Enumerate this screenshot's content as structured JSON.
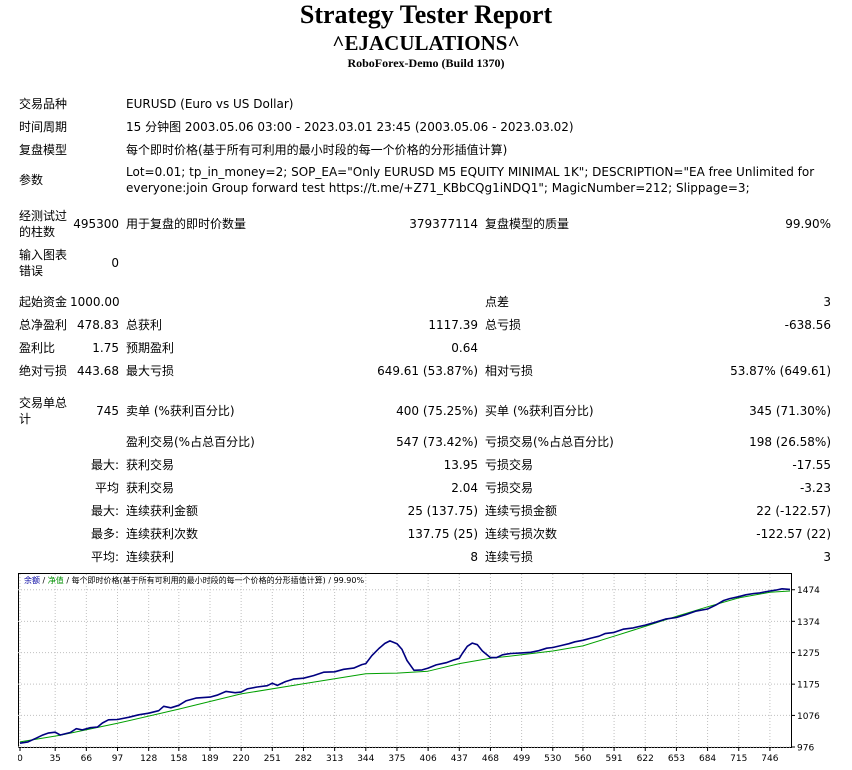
{
  "header": {
    "title": "Strategy Tester Report",
    "ea_name": "^EJACULATIONS^",
    "server": "RoboForex-Demo (Build 1370)"
  },
  "info": {
    "symbol_label": "交易品种",
    "symbol_value": "EURUSD (Euro vs US Dollar)",
    "period_label": "时间周期",
    "period_value": "15 分钟图 2003.05.06 03:00 - 2023.03.01 23:45 (2003.05.06 - 2023.03.02)",
    "model_label": "复盘模型",
    "model_value": "每个即时价格(基于所有可利用的最小时段的每一个价格的分形插值计算)",
    "params_label": "参数",
    "params_value": "Lot=0.01; tp_in_money=2; SOP_EA=\"Only EURUSD M5 EQUITY MINIMAL 1K\"; DESCRIPTION=\"EA free Unlimited for everyone:join Group forward test https://t.me/+Z71_KBbCQg1iNDQ1\"; MagicNumber=212; Slippage=3;"
  },
  "bars": {
    "bars_label": "经测试过的柱数",
    "bars_value": "495300",
    "ticks_label": "用于复盘的即时价数量",
    "ticks_value": "379377114",
    "quality_label": "复盘模型的质量",
    "quality_value": "99.90%",
    "errors_label": "输入图表错误",
    "errors_value": "0"
  },
  "stats": {
    "deposit_label": "起始资金",
    "deposit_value": "1000.00",
    "spread_label": "点差",
    "spread_value": "3",
    "net_label": "总净盈利",
    "net_value": "478.83",
    "gross_profit_label": "总获利",
    "gross_profit_value": "1117.39",
    "gross_loss_label": "总亏损",
    "gross_loss_value": "-638.56",
    "pf_label": "盈利比",
    "pf_value": "1.75",
    "ep_label": "预期盈利",
    "ep_value": "0.64",
    "abs_dd_label": "绝对亏损",
    "abs_dd_value": "443.68",
    "max_dd_label": "最大亏损",
    "max_dd_value": "649.61 (53.87%)",
    "rel_dd_label": "相对亏损",
    "rel_dd_value": "53.87% (649.61)"
  },
  "trades": {
    "total_label": "交易单总计",
    "total_value": "745",
    "short_label": "卖单 (%获利百分比)",
    "short_value": "400 (75.25%)",
    "long_label": "买单 (%获利百分比)",
    "long_value": "345 (71.30%)",
    "profit_trades_label": "盈利交易(%占总百分比)",
    "profit_trades_value": "547 (73.42%)",
    "loss_trades_label": "亏损交易(%占总百分比)",
    "loss_trades_value": "198 (26.58%)",
    "largest_prefix": "最大:",
    "largest_profit_label": "获利交易",
    "largest_profit_value": "13.95",
    "largest_loss_label": "亏损交易",
    "largest_loss_value": "-17.55",
    "average_prefix": "平均",
    "average_profit_label": "获利交易",
    "average_profit_value": "2.04",
    "average_loss_label": "亏损交易",
    "average_loss_value": "-3.23",
    "max_prefix": "最大:",
    "max_cons_wins_label": "连续获利金额",
    "max_cons_wins_value": "25 (137.75)",
    "max_cons_losses_label": "连续亏损金额",
    "max_cons_losses_value": "22 (-122.57)",
    "maximal_prefix": "最多:",
    "maximal_cons_profit_label": "连续获利次数",
    "maximal_cons_profit_value": "137.75 (25)",
    "maximal_cons_loss_label": "连续亏损次数",
    "maximal_cons_loss_value": "-122.57 (22)",
    "avg_cons_prefix": "平均:",
    "avg_cons_wins_label": "连续获利",
    "avg_cons_wins_value": "8",
    "avg_cons_losses_label": "连续亏损",
    "avg_cons_losses_value": "3"
  },
  "chart_legend": {
    "balance": "余额",
    "sep1": " / ",
    "equity": "净值",
    "rest": " / 每个即时价格(基于所有可利用的最小时段的每一个价格的分形插值计算) / 99.90%"
  },
  "chart_data": {
    "type": "line",
    "x_ticks": [
      "0",
      "35",
      "66",
      "97",
      "128",
      "158",
      "189",
      "220",
      "251",
      "282",
      "313",
      "344",
      "375",
      "406",
      "437",
      "468",
      "499",
      "530",
      "560",
      "591",
      "622",
      "653",
      "684",
      "715",
      "746"
    ],
    "y_ticks": [
      "976",
      "1076",
      "1175",
      "1275",
      "1374",
      "1474"
    ],
    "xlim": [
      0,
      766
    ],
    "ylim": [
      976,
      1508
    ],
    "series": [
      {
        "name": "余额",
        "color": "#000080",
        "x": [
          0,
          8,
          16,
          22,
          28,
          35,
          40,
          50,
          56,
          62,
          70,
          77,
          82,
          88,
          97,
          108,
          118,
          128,
          138,
          143,
          150,
          158,
          165,
          175,
          189,
          196,
          205,
          214,
          220,
          226,
          236,
          246,
          251,
          256,
          264,
          272,
          282,
          292,
          302,
          313,
          322,
          332,
          340,
          344,
          350,
          357,
          363,
          368,
          375,
          380,
          385,
          392,
          400,
          406,
          414,
          424,
          432,
          437,
          440,
          445,
          450,
          455,
          460,
          468,
          474,
          480,
          488,
          499,
          508,
          516,
          524,
          530,
          538,
          546,
          552,
          560,
          568,
          576,
          582,
          591,
          600,
          610,
          622,
          632,
          642,
          653,
          662,
          672,
          684,
          692,
          700,
          706,
          715,
          722,
          730,
          736,
          746,
          752,
          758,
          766
        ],
        "y": [
          988,
          992,
          1004,
          1013,
          1020,
          1023,
          1014,
          1022,
          1034,
          1030,
          1037,
          1039,
          1052,
          1062,
          1063,
          1070,
          1078,
          1083,
          1091,
          1105,
          1100,
          1108,
          1122,
          1131,
          1134,
          1140,
          1152,
          1148,
          1150,
          1160,
          1166,
          1170,
          1178,
          1171,
          1183,
          1191,
          1194,
          1202,
          1213,
          1214,
          1222,
          1226,
          1237,
          1240,
          1265,
          1288,
          1304,
          1312,
          1303,
          1285,
          1250,
          1219,
          1220,
          1226,
          1236,
          1243,
          1252,
          1257,
          1272,
          1295,
          1305,
          1300,
          1280,
          1259,
          1259,
          1268,
          1272,
          1274,
          1276,
          1281,
          1289,
          1291,
          1297,
          1303,
          1309,
          1314,
          1321,
          1327,
          1335,
          1339,
          1349,
          1353,
          1362,
          1371,
          1381,
          1386,
          1395,
          1406,
          1413,
          1425,
          1440,
          1446,
          1452,
          1458,
          1462,
          1464,
          1470,
          1473,
          1477,
          1475
        ]
      },
      {
        "name": "净值",
        "color": "#00a000",
        "x": [
          0,
          40,
          97,
          158,
          220,
          282,
          344,
          375,
          406,
          437,
          468,
          499,
          530,
          560,
          591,
          622,
          653,
          684,
          715,
          746,
          766
        ],
        "y": [
          992,
          1013,
          1051,
          1096,
          1144,
          1176,
          1208,
          1210,
          1216,
          1240,
          1257,
          1268,
          1280,
          1296,
          1327,
          1358,
          1390,
          1420,
          1448,
          1466,
          1470
        ]
      }
    ]
  }
}
